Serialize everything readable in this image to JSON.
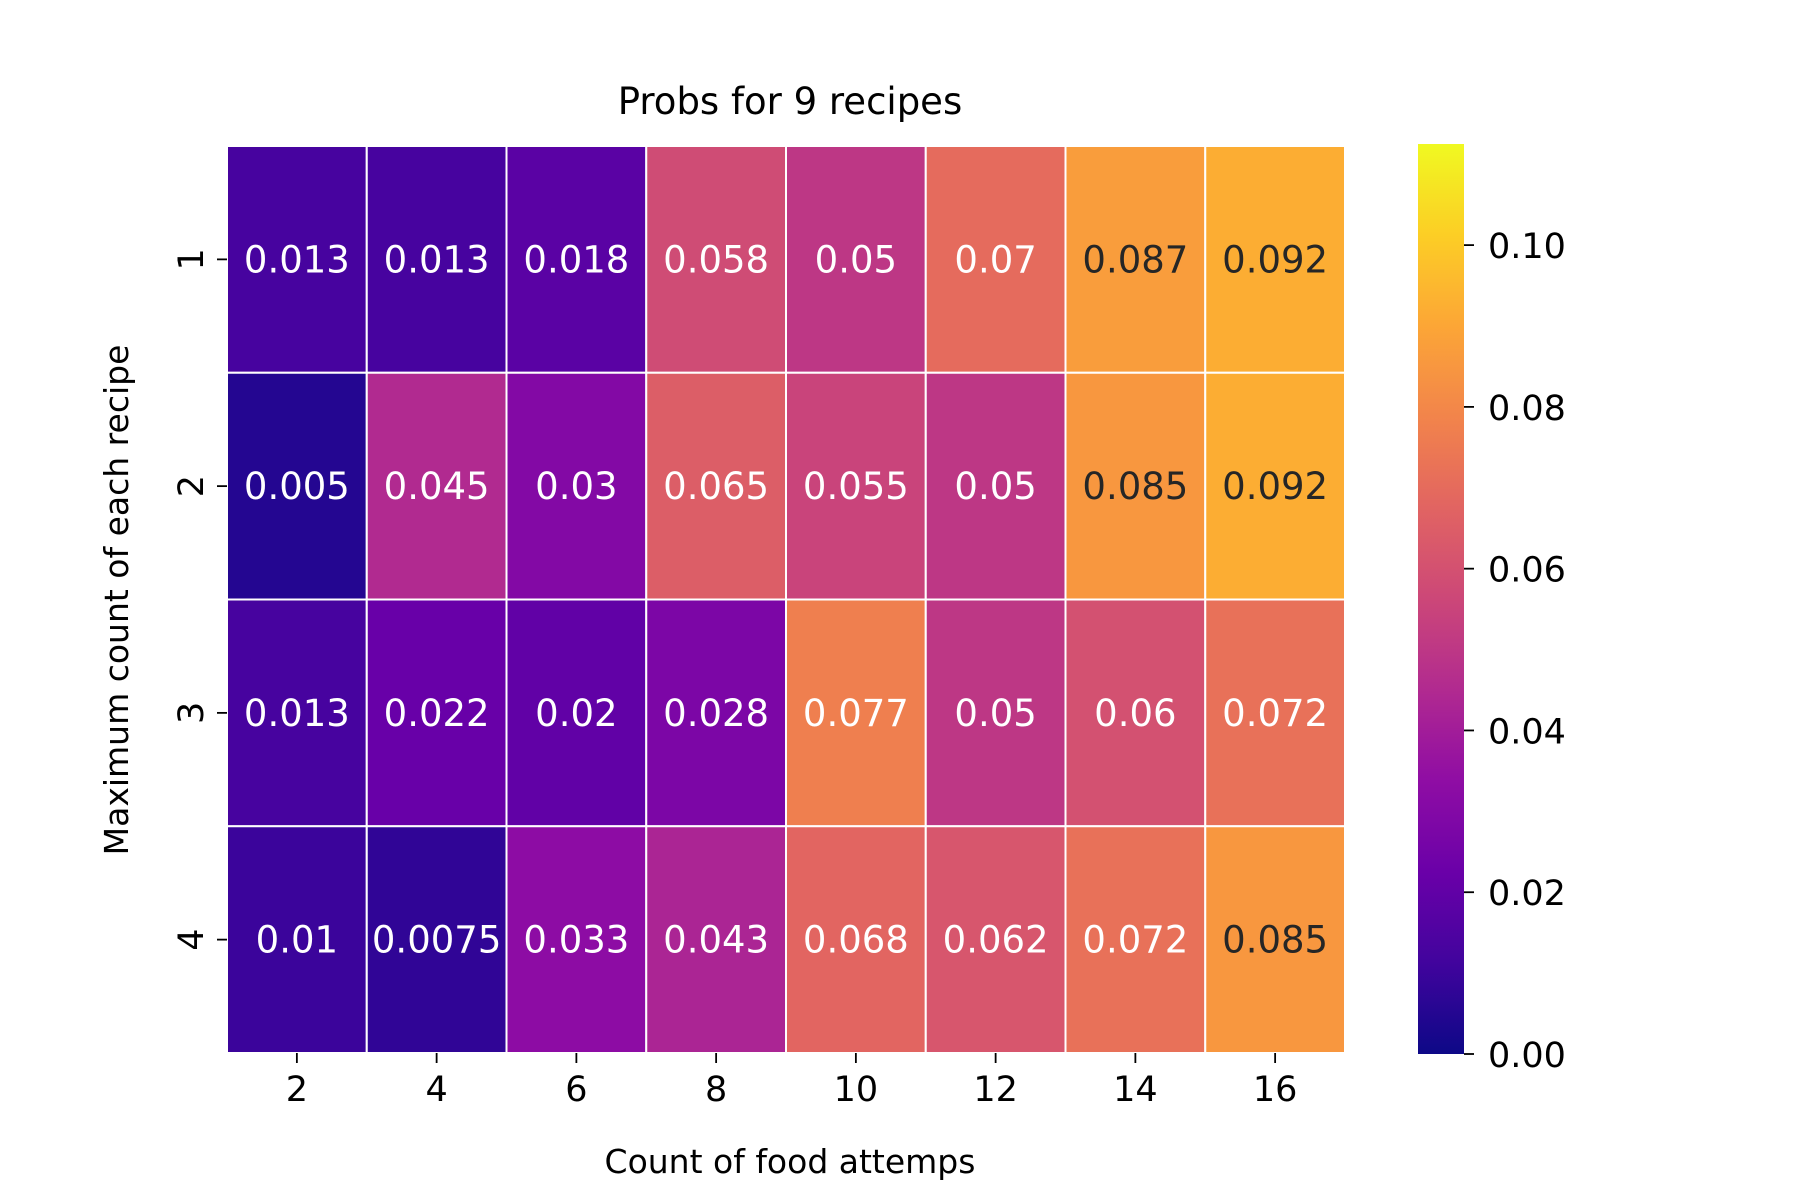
{
  "chart_data": {
    "type": "heatmap",
    "title": "Probs for 9 recipes",
    "xlabel": "Count of food attemps",
    "ylabel": "Maximum count of each recipe",
    "x": [
      "2",
      "4",
      "6",
      "8",
      "10",
      "12",
      "14",
      "16"
    ],
    "y": [
      "1",
      "2",
      "3",
      "4"
    ],
    "values": [
      [
        0.013,
        0.013,
        0.018,
        0.058,
        0.05,
        0.07,
        0.087,
        0.092
      ],
      [
        0.005,
        0.045,
        0.03,
        0.065,
        0.055,
        0.05,
        0.085,
        0.092
      ],
      [
        0.013,
        0.022,
        0.02,
        0.028,
        0.077,
        0.05,
        0.06,
        0.072
      ],
      [
        0.01,
        0.0075,
        0.033,
        0.043,
        0.068,
        0.062,
        0.072,
        0.085
      ]
    ],
    "labels": [
      [
        "0.013",
        "0.013",
        "0.018",
        "0.058",
        "0.05",
        "0.07",
        "0.087",
        "0.092"
      ],
      [
        "0.005",
        "0.045",
        "0.03",
        "0.065",
        "0.055",
        "0.05",
        "0.085",
        "0.092"
      ],
      [
        "0.013",
        "0.022",
        "0.02",
        "0.028",
        "0.077",
        "0.05",
        "0.06",
        "0.072"
      ],
      [
        "0.01",
        "0.0075",
        "0.033",
        "0.043",
        "0.068",
        "0.062",
        "0.072",
        "0.085"
      ]
    ],
    "colormap": "plasma",
    "vmin": 0,
    "vmax": 0.1125,
    "colorbar": {
      "ticks": [
        0,
        0.02,
        0.04,
        0.06,
        0.08,
        0.1
      ],
      "tick_labels": [
        "0.00",
        "0.02",
        "0.04",
        "0.06",
        "0.08",
        "0.10"
      ]
    },
    "grid_line_color": "#ffffff",
    "text_color_dark": "#262626",
    "text_color_light": "#ffffff"
  }
}
